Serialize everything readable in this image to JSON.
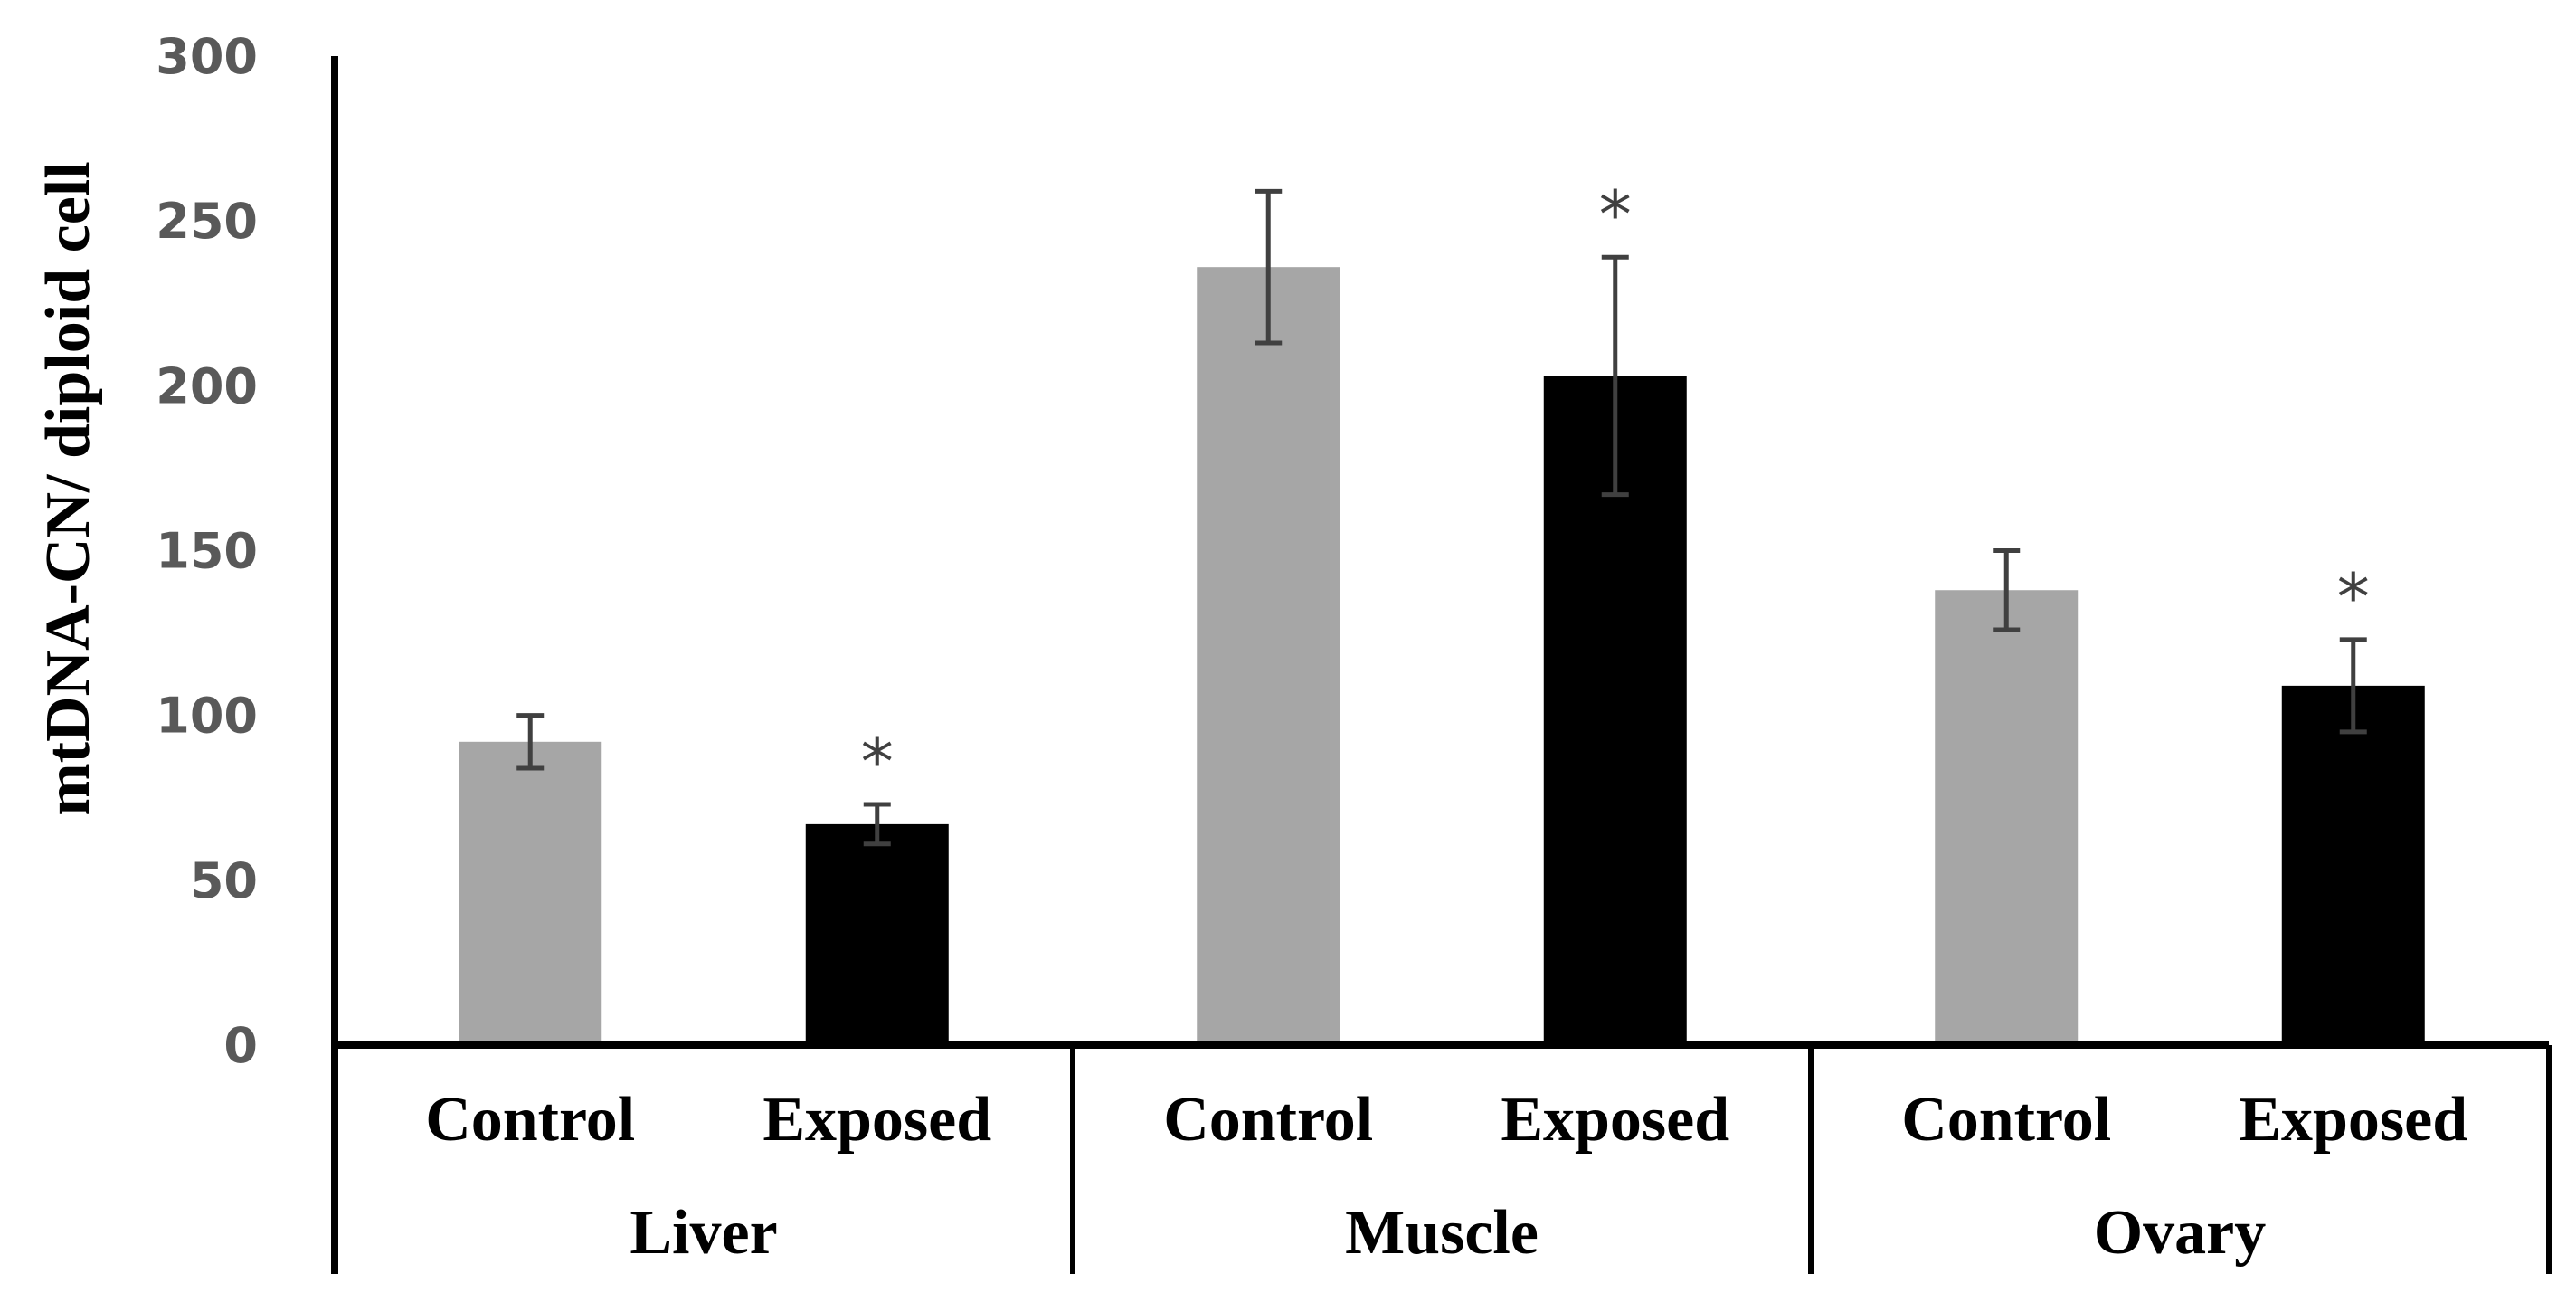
{
  "chart_data": {
    "type": "bar",
    "title": "",
    "ylabel": "mtDNA-CN/ diploid cell",
    "xlabel": "",
    "ylim": [
      0,
      300
    ],
    "yticks": [
      0,
      50,
      100,
      150,
      200,
      250,
      300
    ],
    "groups": [
      "Liver",
      "Muscle",
      "Ovary"
    ],
    "bars": [
      {
        "group": "Liver",
        "label": "Control",
        "value": 92,
        "error": 8,
        "significant": false,
        "color": "#a6a6a6"
      },
      {
        "group": "Liver",
        "label": "Exposed",
        "value": 67,
        "error": 6,
        "significant": true,
        "color": "#000000"
      },
      {
        "group": "Muscle",
        "label": "Control",
        "value": 236,
        "error": 23,
        "significant": false,
        "color": "#a6a6a6"
      },
      {
        "group": "Muscle",
        "label": "Exposed",
        "value": 203,
        "error": 36,
        "significant": true,
        "color": "#000000"
      },
      {
        "group": "Ovary",
        "label": "Control",
        "value": 138,
        "error": 12,
        "significant": false,
        "color": "#a6a6a6"
      },
      {
        "group": "Ovary",
        "label": "Exposed",
        "value": 109,
        "error": 14,
        "significant": true,
        "color": "#000000"
      }
    ],
    "significance_marker": "*",
    "grid": false,
    "legend": "none"
  }
}
